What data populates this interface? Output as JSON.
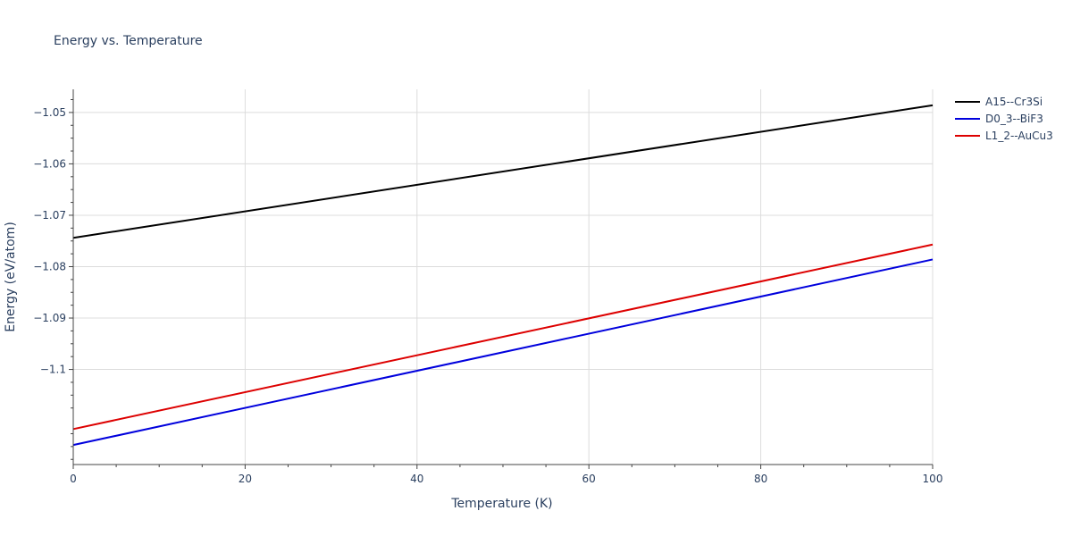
{
  "chart_data": {
    "type": "line",
    "title": "Energy vs. Temperature",
    "xlabel": "Temperature (K)",
    "ylabel": "Energy (eV/atom)",
    "xlim": [
      0,
      100
    ],
    "ylim": [
      -1.1185,
      -1.0455
    ],
    "x_ticks": [
      0,
      20,
      40,
      60,
      80,
      100
    ],
    "x_tick_labels": [
      "0",
      "20",
      "40",
      "60",
      "80",
      "100"
    ],
    "x_minor_ticks": [
      5,
      10,
      15,
      25,
      30,
      35,
      45,
      50,
      55,
      65,
      70,
      75,
      85,
      90,
      95
    ],
    "y_ticks": [
      -1.1,
      -1.09,
      -1.08,
      -1.07,
      -1.06,
      -1.05
    ],
    "y_tick_labels": [
      "−1.1",
      "−1.09",
      "−1.08",
      "−1.07",
      "−1.06",
      "−1.05"
    ],
    "y_minor_ticks": [
      -1.1175,
      -1.115,
      -1.1125,
      -1.1075,
      -1.105,
      -1.1025,
      -1.0975,
      -1.095,
      -1.0925,
      -1.0875,
      -1.085,
      -1.0825,
      -1.0775,
      -1.075,
      -1.0725,
      -1.0675,
      -1.065,
      -1.0625,
      -1.0575,
      -1.055,
      -1.0525,
      -1.0475
    ],
    "grid": true,
    "legend_position": "top-right",
    "series": [
      {
        "name": "A15--Cr3Si",
        "color": "#000000",
        "x": [
          0,
          100
        ],
        "y": [
          -1.0744,
          -1.0486
        ]
      },
      {
        "name": "D0_3--BiF3",
        "color": "#0000dd",
        "x": [
          0,
          100
        ],
        "y": [
          -1.1147,
          -1.0786
        ]
      },
      {
        "name": "L1_2--AuCu3",
        "color": "#dd0000",
        "x": [
          0,
          100
        ],
        "y": [
          -1.1116,
          -1.0757
        ]
      }
    ]
  }
}
